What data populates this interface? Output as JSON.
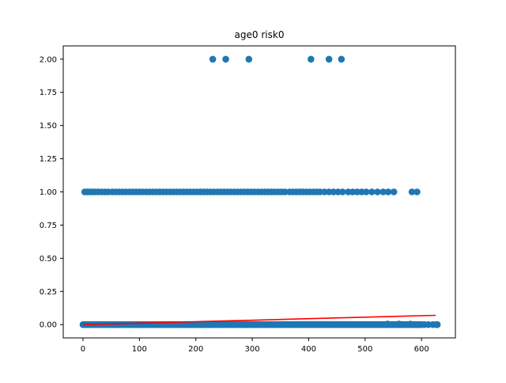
{
  "chart_data": {
    "type": "scatter",
    "title": "age0 risk0",
    "xlabel": "",
    "ylabel": "",
    "xlim": [
      -35,
      660
    ],
    "ylim": [
      -0.1,
      2.1
    ],
    "xticks": [
      0,
      100,
      200,
      300,
      400,
      500,
      600
    ],
    "xtick_labels": [
      "0",
      "100",
      "200",
      "300",
      "400",
      "500",
      "600"
    ],
    "yticks": [
      0.0,
      0.25,
      0.5,
      0.75,
      1.0,
      1.25,
      1.5,
      1.75,
      2.0
    ],
    "ytick_labels": [
      "0.00",
      "0.25",
      "0.50",
      "0.75",
      "1.00",
      "1.25",
      "1.50",
      "1.75",
      "2.00"
    ],
    "grid": false,
    "series": [
      {
        "kind": "scatter",
        "color": "#1f77b4",
        "points": [
          [
            230,
            2
          ],
          [
            253,
            2
          ],
          [
            294,
            2
          ],
          [
            404,
            2
          ],
          [
            436,
            2
          ],
          [
            458,
            2
          ],
          [
            3,
            1
          ],
          [
            8,
            1
          ],
          [
            12,
            1
          ],
          [
            17,
            1
          ],
          [
            22,
            1
          ],
          [
            27,
            1
          ],
          [
            33,
            1
          ],
          [
            39,
            1
          ],
          [
            45,
            1
          ],
          [
            52,
            1
          ],
          [
            58,
            1
          ],
          [
            64,
            1
          ],
          [
            70,
            1
          ],
          [
            76,
            1
          ],
          [
            82,
            1
          ],
          [
            88,
            1
          ],
          [
            94,
            1
          ],
          [
            100,
            1
          ],
          [
            106,
            1
          ],
          [
            112,
            1
          ],
          [
            118,
            1
          ],
          [
            124,
            1
          ],
          [
            130,
            1
          ],
          [
            136,
            1
          ],
          [
            142,
            1
          ],
          [
            148,
            1
          ],
          [
            154,
            1
          ],
          [
            160,
            1
          ],
          [
            166,
            1
          ],
          [
            172,
            1
          ],
          [
            178,
            1
          ],
          [
            184,
            1
          ],
          [
            190,
            1
          ],
          [
            196,
            1
          ],
          [
            202,
            1
          ],
          [
            208,
            1
          ],
          [
            214,
            1
          ],
          [
            220,
            1
          ],
          [
            226,
            1
          ],
          [
            232,
            1
          ],
          [
            238,
            1
          ],
          [
            244,
            1
          ],
          [
            250,
            1
          ],
          [
            256,
            1
          ],
          [
            262,
            1
          ],
          [
            268,
            1
          ],
          [
            274,
            1
          ],
          [
            280,
            1
          ],
          [
            286,
            1
          ],
          [
            292,
            1
          ],
          [
            298,
            1
          ],
          [
            304,
            1
          ],
          [
            310,
            1
          ],
          [
            316,
            1
          ],
          [
            322,
            1
          ],
          [
            328,
            1
          ],
          [
            334,
            1
          ],
          [
            340,
            1
          ],
          [
            346,
            1
          ],
          [
            352,
            1
          ],
          [
            358,
            1
          ],
          [
            366,
            1
          ],
          [
            372,
            1
          ],
          [
            378,
            1
          ],
          [
            384,
            1
          ],
          [
            390,
            1
          ],
          [
            396,
            1
          ],
          [
            402,
            1
          ],
          [
            408,
            1
          ],
          [
            414,
            1
          ],
          [
            420,
            1
          ],
          [
            428,
            1
          ],
          [
            436,
            1
          ],
          [
            444,
            1
          ],
          [
            452,
            1
          ],
          [
            460,
            1
          ],
          [
            470,
            1
          ],
          [
            478,
            1
          ],
          [
            486,
            1
          ],
          [
            494,
            1
          ],
          [
            502,
            1
          ],
          [
            512,
            1
          ],
          [
            522,
            1
          ],
          [
            532,
            1
          ],
          [
            541,
            1
          ],
          [
            551,
            1
          ],
          [
            583,
            1
          ],
          [
            592,
            1
          ]
        ],
        "dense_band": {
          "y": 0,
          "x_from": 0,
          "x_to": 600,
          "step": 2
        },
        "extra_points": [
          [
            605,
            0
          ],
          [
            612,
            0
          ],
          [
            620,
            0
          ],
          [
            626,
            0
          ],
          [
            628,
            0
          ],
          [
            540,
            0.005
          ],
          [
            560,
            0.005
          ],
          [
            580,
            0.004
          ]
        ]
      },
      {
        "kind": "line",
        "color": "#ff0000",
        "x": [
          0,
          100,
          200,
          300,
          400,
          500,
          625
        ],
        "y": [
          0.0,
          0.011,
          0.022,
          0.033,
          0.045,
          0.056,
          0.07
        ]
      }
    ]
  }
}
